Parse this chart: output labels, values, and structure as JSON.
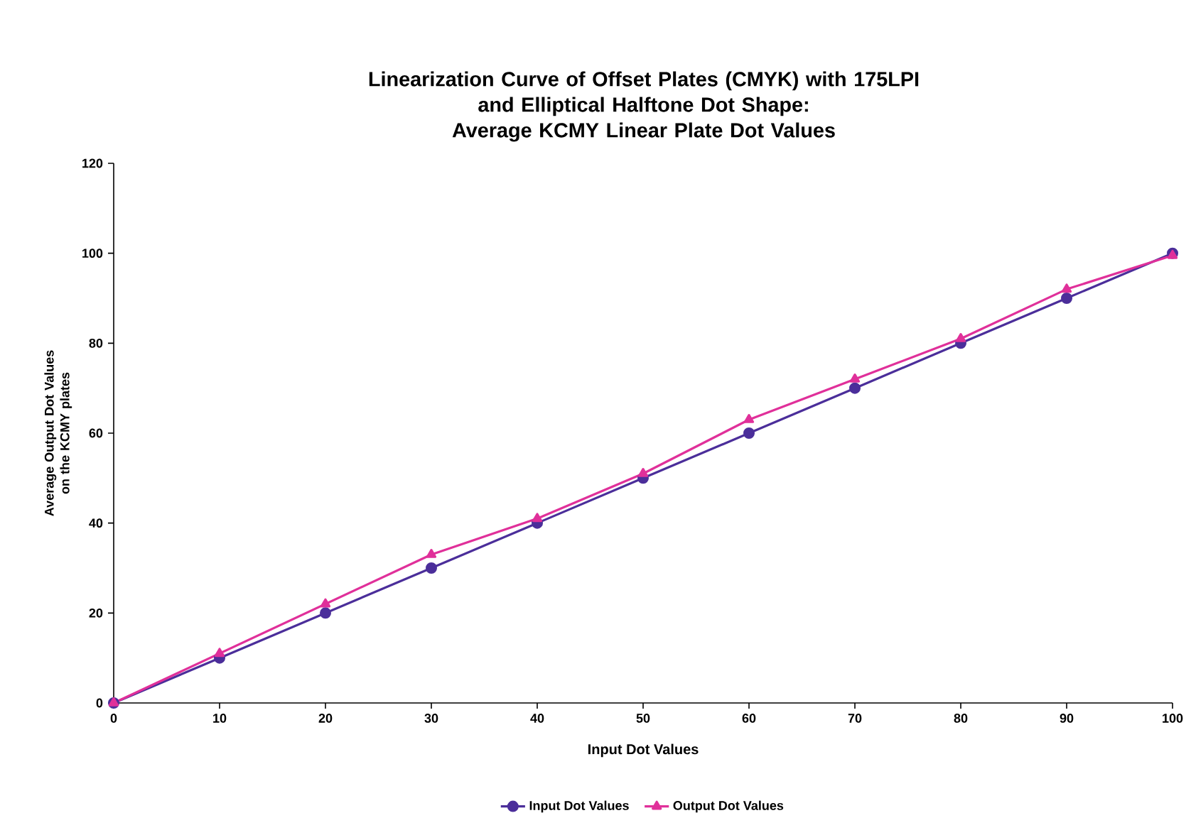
{
  "chart_data": {
    "type": "line",
    "title": "Linearization Curve of Offset Plates (CMYK) with 175LPI\nand Elliptical Halftone Dot Shape:\nAverage KCMY Linear Plate Dot Values",
    "xlabel": "Input Dot Values",
    "ylabel": "Average Output Dot Values on the KCMY plates",
    "x": [
      0,
      10,
      20,
      30,
      40,
      50,
      60,
      70,
      80,
      90,
      100
    ],
    "series": [
      {
        "name": "Input Dot Values",
        "color": "#4b2e9a",
        "marker": "circle",
        "values": [
          0,
          10,
          20,
          30,
          40,
          50,
          60,
          70,
          80,
          90,
          100
        ]
      },
      {
        "name": "Output Dot Values",
        "color": "#e0309a",
        "marker": "triangle",
        "values": [
          0,
          11,
          22,
          33,
          41,
          51,
          63,
          72,
          81,
          92,
          99.5
        ]
      }
    ],
    "xlim": [
      0,
      100
    ],
    "ylim": [
      0,
      120
    ],
    "xticks": [
      0,
      10,
      20,
      30,
      40,
      50,
      60,
      70,
      80,
      90,
      100
    ],
    "yticks": [
      0,
      20,
      40,
      60,
      80,
      100,
      120
    ],
    "grid": false,
    "legend": "bottom",
    "line_style": "solid"
  }
}
